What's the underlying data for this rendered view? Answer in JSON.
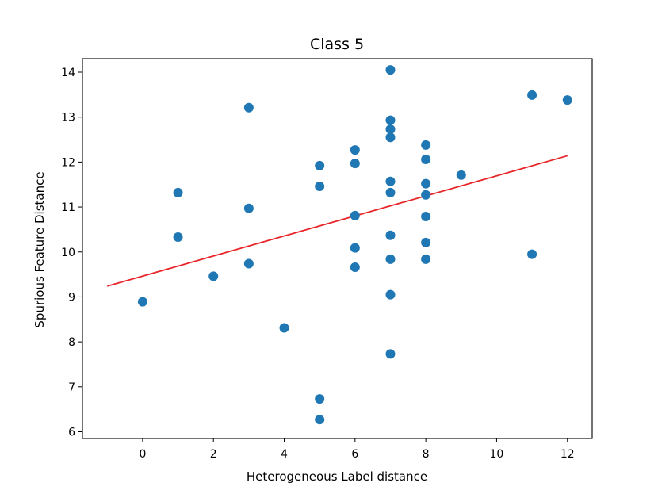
{
  "chart_data": {
    "type": "scatter",
    "title": "Class 5",
    "xlabel": "Heterogeneous Label distance",
    "ylabel": "Spurious Feature Distance",
    "xlim": [
      -1.7,
      12.7
    ],
    "ylim": [
      5.85,
      14.3
    ],
    "x_ticks": [
      0,
      2,
      4,
      6,
      8,
      10,
      12
    ],
    "y_ticks": [
      6,
      7,
      8,
      9,
      10,
      11,
      12,
      13,
      14
    ],
    "grid": false,
    "point_color": "#1f77b4",
    "fit_line_color": "#e8262a",
    "points": [
      {
        "x": 0,
        "y": 8.89
      },
      {
        "x": 1,
        "y": 11.32
      },
      {
        "x": 1,
        "y": 10.33
      },
      {
        "x": 2,
        "y": 9.46
      },
      {
        "x": 3,
        "y": 13.21
      },
      {
        "x": 3,
        "y": 10.97
      },
      {
        "x": 3,
        "y": 9.74
      },
      {
        "x": 4,
        "y": 8.31
      },
      {
        "x": 5,
        "y": 11.92
      },
      {
        "x": 5,
        "y": 11.46
      },
      {
        "x": 5,
        "y": 6.73
      },
      {
        "x": 5,
        "y": 6.27
      },
      {
        "x": 6,
        "y": 12.27
      },
      {
        "x": 6,
        "y": 11.97
      },
      {
        "x": 6,
        "y": 10.81
      },
      {
        "x": 6,
        "y": 10.09
      },
      {
        "x": 6,
        "y": 9.66
      },
      {
        "x": 7,
        "y": 14.05
      },
      {
        "x": 7,
        "y": 12.93
      },
      {
        "x": 7,
        "y": 12.73
      },
      {
        "x": 7,
        "y": 12.55
      },
      {
        "x": 7,
        "y": 11.57
      },
      {
        "x": 7,
        "y": 11.32
      },
      {
        "x": 7,
        "y": 10.37
      },
      {
        "x": 7,
        "y": 9.84
      },
      {
        "x": 7,
        "y": 9.05
      },
      {
        "x": 7,
        "y": 7.73
      },
      {
        "x": 8,
        "y": 12.38
      },
      {
        "x": 8,
        "y": 12.06
      },
      {
        "x": 8,
        "y": 11.52
      },
      {
        "x": 8,
        "y": 11.27
      },
      {
        "x": 8,
        "y": 10.79
      },
      {
        "x": 8,
        "y": 10.21
      },
      {
        "x": 8,
        "y": 9.84
      },
      {
        "x": 9,
        "y": 11.71
      },
      {
        "x": 11,
        "y": 13.49
      },
      {
        "x": 11,
        "y": 9.95
      },
      {
        "x": 12,
        "y": 13.38
      }
    ],
    "fit_line": {
      "x": [
        -1,
        12
      ],
      "y": [
        9.24,
        12.14
      ]
    }
  }
}
